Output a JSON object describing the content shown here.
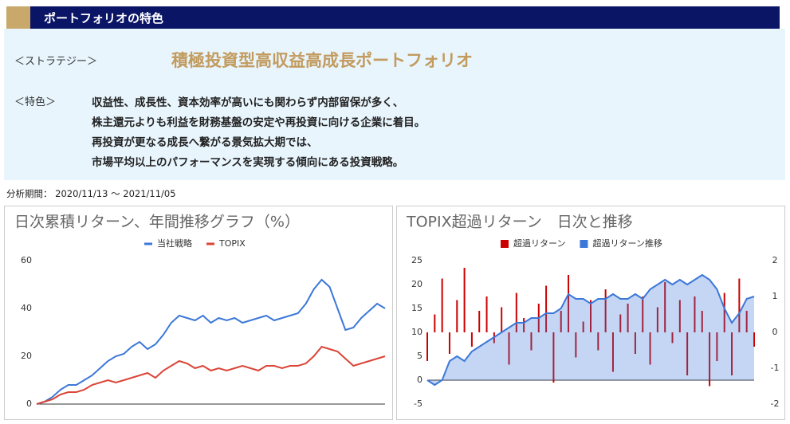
{
  "header": {
    "title": "ポートフォリオの特色"
  },
  "strategy": {
    "label": "＜ストラテジー＞",
    "name": "積極投資型高収益高成長ポートフォリオ"
  },
  "features": {
    "label": "＜特色＞",
    "lines": [
      "収益性、成長性、資本効率が高いにも関わらず内部留保が多く、",
      "株主還元よりも利益を財務基盤の安定や再投資に向ける企業に着目。",
      "再投資が更なる成長へ繋がる景気拡大期では、",
      "市場平均以上のパフォーマンスを実現する傾向にある投資戦略。"
    ]
  },
  "period": "分析期間： 2020/11/13 ～ 2021/11/05",
  "chart_data": [
    {
      "type": "line",
      "title": "日次累積リターン、年間推移グラフ（%）",
      "series": [
        {
          "name": "当社戦略",
          "color": "#3c78d8",
          "values": [
            0,
            1,
            3,
            6,
            8,
            8,
            10,
            12,
            15,
            18,
            20,
            21,
            24,
            26,
            23,
            25,
            29,
            34,
            37,
            36,
            35,
            37,
            34,
            36,
            35,
            36,
            34,
            35,
            36,
            37,
            35,
            36,
            37,
            38,
            42,
            48,
            52,
            49,
            40,
            31,
            32,
            36,
            39,
            42,
            40
          ]
        },
        {
          "name": "TOPIX",
          "color": "#db4437",
          "values": [
            0,
            1,
            2,
            4,
            5,
            5,
            6,
            8,
            9,
            10,
            9,
            10,
            11,
            12,
            13,
            11,
            14,
            16,
            18,
            17,
            15,
            16,
            14,
            15,
            14,
            15,
            16,
            15,
            14,
            16,
            16,
            15,
            16,
            16,
            17,
            20,
            24,
            23,
            22,
            19,
            16,
            17,
            18,
            19,
            20
          ]
        }
      ],
      "ylim": [
        0,
        60
      ],
      "yticks": [
        0,
        20,
        40,
        60
      ]
    },
    {
      "type": "combo",
      "title": "TOPIX超過リターン　日次と推移",
      "series": [
        {
          "name": "超過リターン",
          "color": "#cc0000",
          "type": "bar",
          "axis": "y2",
          "values": [
            -0.8,
            0.5,
            1.5,
            -0.6,
            0.9,
            1.8,
            -0.4,
            0.6,
            1.0,
            -0.3,
            0.7,
            -0.9,
            1.1,
            0.4,
            -0.5,
            0.8,
            1.3,
            -1.4,
            0.6,
            1.6,
            -0.7,
            0.3,
            0.9,
            -0.5,
            1.2,
            -1.1,
            0.5,
            0.8,
            -0.6,
            1.0,
            -0.9,
            0.7,
            1.4,
            -0.3,
            0.9,
            -1.2,
            1.0,
            0.6,
            -1.5,
            -0.8,
            1.1,
            -1.2,
            1.5,
            0.6,
            -0.4
          ]
        },
        {
          "name": "超過リターン推移",
          "color": "#3c78d8",
          "type": "area",
          "values": [
            0,
            -1,
            0,
            4,
            5,
            4,
            6,
            7,
            8,
            9,
            10,
            11,
            12,
            12,
            13,
            13,
            14,
            14,
            15,
            18,
            17,
            17,
            16,
            17,
            17,
            18,
            17,
            17,
            18,
            17,
            19,
            20,
            21,
            20,
            21,
            20,
            21,
            22,
            21,
            19,
            15,
            12,
            14,
            17,
            17.5
          ]
        }
      ],
      "ylim": [
        -5,
        25
      ],
      "yticks": [
        -5,
        0,
        5,
        10,
        15,
        20,
        25
      ],
      "y2lim": [
        -2,
        2
      ],
      "y2ticks": [
        -2,
        -1,
        0,
        1,
        2
      ]
    }
  ]
}
